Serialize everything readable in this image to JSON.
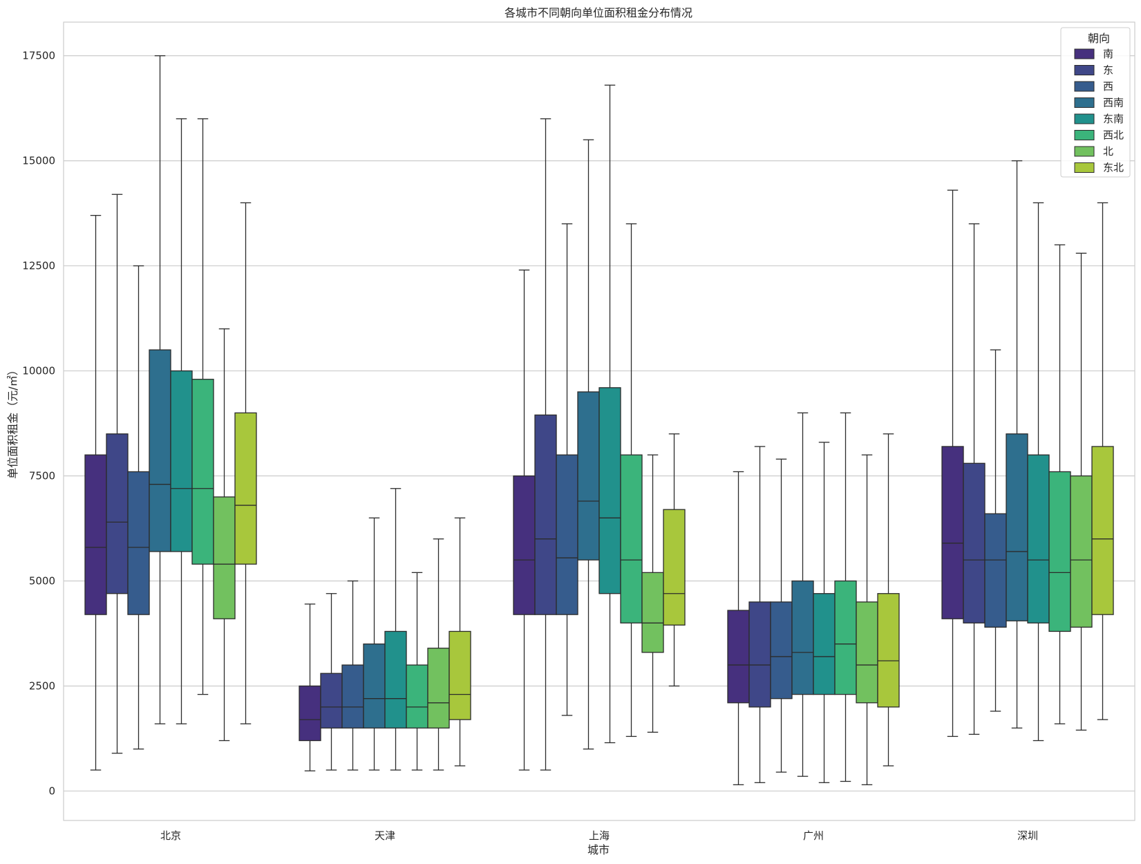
{
  "chart_data": {
    "type": "boxplot",
    "title": "各城市不同朝向单位面积租金分布情况",
    "xlabel": "城市",
    "ylabel": "单位面积租金（元/㎡）",
    "ylim": [
      -700,
      18300
    ],
    "yticks": [
      0,
      2500,
      5000,
      7500,
      10000,
      12500,
      15000,
      17500
    ],
    "grid": "horizontal",
    "legend": {
      "title": "朝向",
      "placement": "top-right"
    },
    "categories": [
      "北京",
      "天津",
      "上海",
      "广州",
      "深圳"
    ],
    "series": [
      {
        "name": "南",
        "color": "#46307e",
        "boxes": [
          {
            "whisker_low": 500,
            "q1": 4200,
            "median": 5800,
            "q3": 8000,
            "whisker_high": 13700
          },
          {
            "whisker_low": 480,
            "q1": 1200,
            "median": 1700,
            "q3": 2500,
            "whisker_high": 4450
          },
          {
            "whisker_low": 500,
            "q1": 4200,
            "median": 5500,
            "q3": 7500,
            "whisker_high": 12400
          },
          {
            "whisker_low": 150,
            "q1": 2100,
            "median": 3000,
            "q3": 4300,
            "whisker_high": 7600
          },
          {
            "whisker_low": 1300,
            "q1": 4100,
            "median": 5900,
            "q3": 8200,
            "whisker_high": 14300
          }
        ]
      },
      {
        "name": "东",
        "color": "#3f4788",
        "boxes": [
          {
            "whisker_low": 900,
            "q1": 4700,
            "median": 6400,
            "q3": 8500,
            "whisker_high": 14200
          },
          {
            "whisker_low": 500,
            "q1": 1500,
            "median": 2000,
            "q3": 2800,
            "whisker_high": 4700
          },
          {
            "whisker_low": 500,
            "q1": 4200,
            "median": 6000,
            "q3": 8950,
            "whisker_high": 16000
          },
          {
            "whisker_low": 200,
            "q1": 2000,
            "median": 3000,
            "q3": 4500,
            "whisker_high": 8200
          },
          {
            "whisker_low": 1350,
            "q1": 4000,
            "median": 5500,
            "q3": 7800,
            "whisker_high": 13500
          }
        ]
      },
      {
        "name": "西",
        "color": "#365c8d",
        "boxes": [
          {
            "whisker_low": 1000,
            "q1": 4200,
            "median": 5800,
            "q3": 7600,
            "whisker_high": 12500
          },
          {
            "whisker_low": 500,
            "q1": 1500,
            "median": 2000,
            "q3": 3000,
            "whisker_high": 5000
          },
          {
            "whisker_low": 1800,
            "q1": 4200,
            "median": 5550,
            "q3": 8000,
            "whisker_high": 13500
          },
          {
            "whisker_low": 450,
            "q1": 2200,
            "median": 3200,
            "q3": 4500,
            "whisker_high": 7900
          },
          {
            "whisker_low": 1900,
            "q1": 3900,
            "median": 5500,
            "q3": 6600,
            "whisker_high": 10500
          }
        ]
      },
      {
        "name": "西南",
        "color": "#2e6f8e",
        "boxes": [
          {
            "whisker_low": 1600,
            "q1": 5700,
            "median": 7300,
            "q3": 10500,
            "whisker_high": 17500
          },
          {
            "whisker_low": 500,
            "q1": 1500,
            "median": 2200,
            "q3": 3500,
            "whisker_high": 6500
          },
          {
            "whisker_low": 1000,
            "q1": 5500,
            "median": 6900,
            "q3": 9500,
            "whisker_high": 15500
          },
          {
            "whisker_low": 350,
            "q1": 2300,
            "median": 3300,
            "q3": 5000,
            "whisker_high": 9000
          },
          {
            "whisker_low": 1500,
            "q1": 4050,
            "median": 5700,
            "q3": 8500,
            "whisker_high": 15000
          }
        ]
      },
      {
        "name": "东南",
        "color": "#21918c",
        "boxes": [
          {
            "whisker_low": 1600,
            "q1": 5700,
            "median": 7200,
            "q3": 10000,
            "whisker_high": 16000
          },
          {
            "whisker_low": 500,
            "q1": 1500,
            "median": 2200,
            "q3": 3800,
            "whisker_high": 7200
          },
          {
            "whisker_low": 1150,
            "q1": 4700,
            "median": 6500,
            "q3": 9600,
            "whisker_high": 16800
          },
          {
            "whisker_low": 200,
            "q1": 2300,
            "median": 3200,
            "q3": 4700,
            "whisker_high": 8300
          },
          {
            "whisker_low": 1200,
            "q1": 4000,
            "median": 5500,
            "q3": 8000,
            "whisker_high": 14000
          }
        ]
      },
      {
        "name": "西北",
        "color": "#3bb47b",
        "boxes": [
          {
            "whisker_low": 2300,
            "q1": 5400,
            "median": 7200,
            "q3": 9800,
            "whisker_high": 16000
          },
          {
            "whisker_low": 500,
            "q1": 1500,
            "median": 2000,
            "q3": 3000,
            "whisker_high": 5200
          },
          {
            "whisker_low": 1300,
            "q1": 4000,
            "median": 5500,
            "q3": 8000,
            "whisker_high": 13500
          },
          {
            "whisker_low": 230,
            "q1": 2300,
            "median": 3500,
            "q3": 5000,
            "whisker_high": 9000
          },
          {
            "whisker_low": 1600,
            "q1": 3800,
            "median": 5200,
            "q3": 7600,
            "whisker_high": 13000
          }
        ]
      },
      {
        "name": "北",
        "color": "#72c15f",
        "boxes": [
          {
            "whisker_low": 1200,
            "q1": 4100,
            "median": 5400,
            "q3": 7000,
            "whisker_high": 11000
          },
          {
            "whisker_low": 500,
            "q1": 1500,
            "median": 2100,
            "q3": 3400,
            "whisker_high": 6000
          },
          {
            "whisker_low": 1400,
            "q1": 3300,
            "median": 4000,
            "q3": 5200,
            "whisker_high": 8000
          },
          {
            "whisker_low": 150,
            "q1": 2100,
            "median": 3000,
            "q3": 4500,
            "whisker_high": 8000
          },
          {
            "whisker_low": 1450,
            "q1": 3900,
            "median": 5500,
            "q3": 7500,
            "whisker_high": 12800
          }
        ]
      },
      {
        "name": "东北",
        "color": "#a8c73c",
        "boxes": [
          {
            "whisker_low": 1600,
            "q1": 5400,
            "median": 6800,
            "q3": 9000,
            "whisker_high": 14000
          },
          {
            "whisker_low": 600,
            "q1": 1700,
            "median": 2300,
            "q3": 3800,
            "whisker_high": 6500
          },
          {
            "whisker_low": 2500,
            "q1": 3950,
            "median": 4700,
            "q3": 6700,
            "whisker_high": 8500
          },
          {
            "whisker_low": 600,
            "q1": 2000,
            "median": 3100,
            "q3": 4700,
            "whisker_high": 8500
          },
          {
            "whisker_low": 1700,
            "q1": 4200,
            "median": 6000,
            "q3": 8200,
            "whisker_high": 14000
          }
        ]
      }
    ]
  }
}
